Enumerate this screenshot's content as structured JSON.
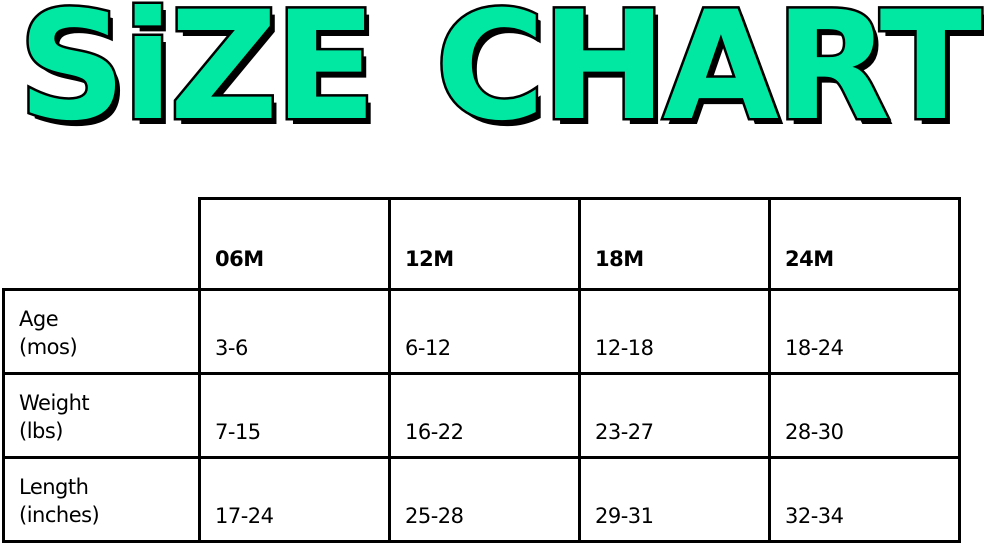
{
  "title": {
    "word1": "SiZE",
    "word2": "CHART"
  },
  "colors": {
    "accent": "#00E8A2",
    "outline": "#000000"
  },
  "chart_data": {
    "type": "table",
    "columns": [
      "06M",
      "12M",
      "18M",
      "24M"
    ],
    "rows": [
      {
        "label": [
          "Age",
          "(mos)"
        ],
        "values": [
          "3-6",
          "6-12",
          "12-18",
          "18-24"
        ]
      },
      {
        "label": [
          "Weight",
          "(lbs)"
        ],
        "values": [
          "7-15",
          "16-22",
          "23-27",
          "28-30"
        ]
      },
      {
        "label": [
          "Length",
          "(inches)"
        ],
        "values": [
          "17-24",
          "25-28",
          "29-31",
          "32-34"
        ]
      }
    ]
  }
}
